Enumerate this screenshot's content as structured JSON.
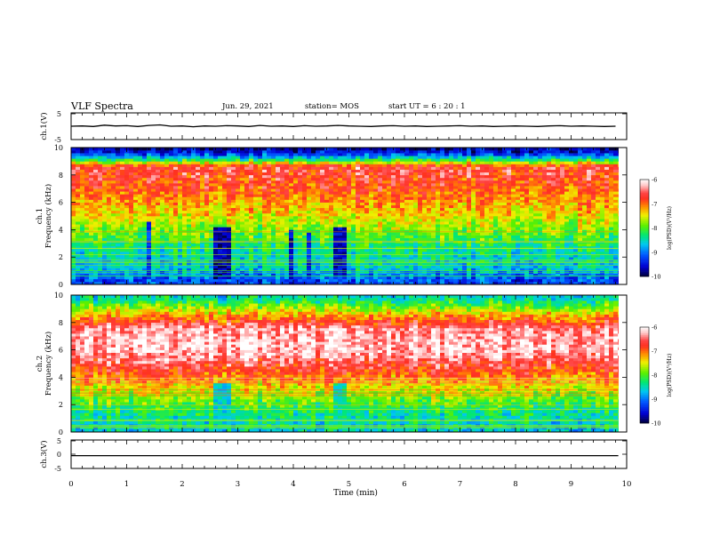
{
  "header": {
    "title": "VLF Spectra",
    "date": "Jun. 29, 2021",
    "station": "station= MOS",
    "start": "start  UT =   6 : 20 : 1"
  },
  "colors": {
    "background": "#ffffff",
    "axis": "#000000",
    "colormap": [
      "#00003c",
      "#0000d2",
      "#0058ff",
      "#00c8f0",
      "#00e678",
      "#5af000",
      "#f0f000",
      "#ff8c00",
      "#ff3020",
      "#ff4646",
      "#ffc8c8",
      "#ffffff"
    ]
  },
  "chart_data": [
    {
      "type": "line",
      "id": "ch1-waveform",
      "ylabel": "ch.1(V)",
      "ylim": [
        -5,
        5
      ],
      "yticks": [
        "5",
        "-5"
      ],
      "xlim": [
        0,
        10
      ],
      "series": [
        {
          "x": [
            0,
            0.2,
            0.4,
            0.6,
            0.8,
            1.0,
            1.2,
            1.4,
            1.6,
            1.8,
            2.0,
            2.2,
            2.4,
            2.6,
            2.8,
            3.0,
            3.2,
            3.4,
            3.6,
            3.8,
            4.0,
            4.2,
            4.4,
            4.6,
            4.8,
            5.0,
            5.2,
            5.4,
            5.6,
            5.8,
            6.0,
            6.2,
            6.4,
            6.6,
            6.8,
            7.0,
            7.2,
            7.4,
            7.6,
            7.8,
            8.0,
            8.2,
            8.4,
            8.6,
            8.8,
            9.0,
            9.2,
            9.4,
            9.6,
            9.8
          ],
          "y": [
            0,
            0.1,
            -0.1,
            0.4,
            0.1,
            0.2,
            -0.1,
            0.3,
            0.5,
            0,
            0.1,
            -0.2,
            0.1,
            0,
            0.2,
            0.1,
            -0.1,
            0.3,
            0,
            0.1,
            -0.1,
            0.2,
            0,
            0.1,
            0.3,
            0.1,
            0,
            -0.1,
            0.1,
            0.2,
            0,
            0.1,
            -0.1,
            0,
            0.1,
            0.2,
            0,
            0.1,
            -0.1,
            0,
            0.1,
            0,
            -0.1,
            0.1,
            0.2,
            0,
            0.1,
            0,
            -0.1,
            0
          ]
        }
      ]
    },
    {
      "type": "heatmap",
      "id": "ch1-spectrogram",
      "ylabel": "ch.1",
      "ylabel2": "Frequency (kHz)",
      "xlim": [
        0,
        9.85
      ],
      "ylim": [
        0,
        10
      ],
      "yticks": [
        "0",
        "2",
        "4",
        "6",
        "8",
        "10"
      ],
      "colorbar": {
        "label": "log(PSD)(V²/Hz)",
        "range": [
          -10,
          -6
        ],
        "ticks": [
          "-6",
          "-7",
          "-8",
          "-9",
          "-10"
        ]
      },
      "bands": [
        {
          "f": 0.3,
          "v": -9.2
        },
        {
          "f": 1.2,
          "v": -8.6
        },
        {
          "f": 2.5,
          "v": -8.4
        },
        {
          "f": 4.0,
          "v": -7.8
        },
        {
          "f": 5.5,
          "v": -7.3
        },
        {
          "f": 7.0,
          "v": -6.9
        },
        {
          "f": 8.6,
          "v": -6.6
        },
        {
          "f": 9.1,
          "v": -8.2
        },
        {
          "f": 9.6,
          "v": -9.4
        },
        {
          "f": 10.0,
          "v": -9.8
        }
      ],
      "dark_events": [
        {
          "t0": 2.55,
          "t1": 2.85,
          "f0": 0.4,
          "f1": 4.2,
          "v": -9.7
        },
        {
          "t0": 3.85,
          "t1": 3.95,
          "f0": 0.5,
          "f1": 4.0,
          "v": -9.6
        },
        {
          "t0": 4.7,
          "t1": 4.9,
          "f0": 0.6,
          "f1": 4.2,
          "v": -9.6
        },
        {
          "t0": 4.2,
          "t1": 4.24,
          "f0": 0.5,
          "f1": 3.8,
          "v": -9.4
        },
        {
          "t0": 1.35,
          "t1": 1.4,
          "f0": 0.5,
          "f1": 4.5,
          "v": -9.3
        }
      ]
    },
    {
      "type": "heatmap",
      "id": "ch2-spectrogram",
      "ylabel": "ch.2",
      "ylabel2": "Frequency (kHz)",
      "xlim": [
        0,
        9.85
      ],
      "ylim": [
        0,
        10
      ],
      "yticks": [
        "0",
        "2",
        "4",
        "6",
        "8",
        "10"
      ],
      "colorbar": {
        "label": "log(PSD)(V²/Hz)",
        "range": [
          -10,
          -6
        ],
        "ticks": [
          "-6",
          "-7",
          "-8",
          "-9",
          "-10"
        ]
      },
      "bands": [
        {
          "f": 0.2,
          "v": -8.6
        },
        {
          "f": 1.5,
          "v": -8.3
        },
        {
          "f": 3.0,
          "v": -7.6
        },
        {
          "f": 4.5,
          "v": -6.8
        },
        {
          "f": 6.0,
          "v": -6.2
        },
        {
          "f": 7.5,
          "v": -6.3
        },
        {
          "f": 8.5,
          "v": -7.2
        },
        {
          "f": 9.3,
          "v": -8.0
        },
        {
          "f": 10.0,
          "v": -8.6
        }
      ],
      "dark_events": [
        {
          "t0": 2.55,
          "t1": 2.85,
          "f0": 0.5,
          "f1": 3.5,
          "v": -8.6
        },
        {
          "t0": 4.7,
          "t1": 4.9,
          "f0": 0.6,
          "f1": 3.5,
          "v": -8.4
        }
      ]
    },
    {
      "type": "line",
      "id": "ch3-waveform",
      "ylabel": "ch.3(V)",
      "ylim": [
        -5,
        5
      ],
      "yticks": [
        "5",
        "0",
        "-5"
      ],
      "xlim": [
        0,
        10
      ],
      "series": [
        {
          "x": [
            0,
            9.85
          ],
          "y": [
            -0.5,
            -0.5
          ]
        }
      ]
    }
  ],
  "time_axis": {
    "label": "Time (min)",
    "ticks": [
      "0",
      "1",
      "2",
      "3",
      "4",
      "5",
      "6",
      "7",
      "8",
      "9",
      "10"
    ]
  }
}
